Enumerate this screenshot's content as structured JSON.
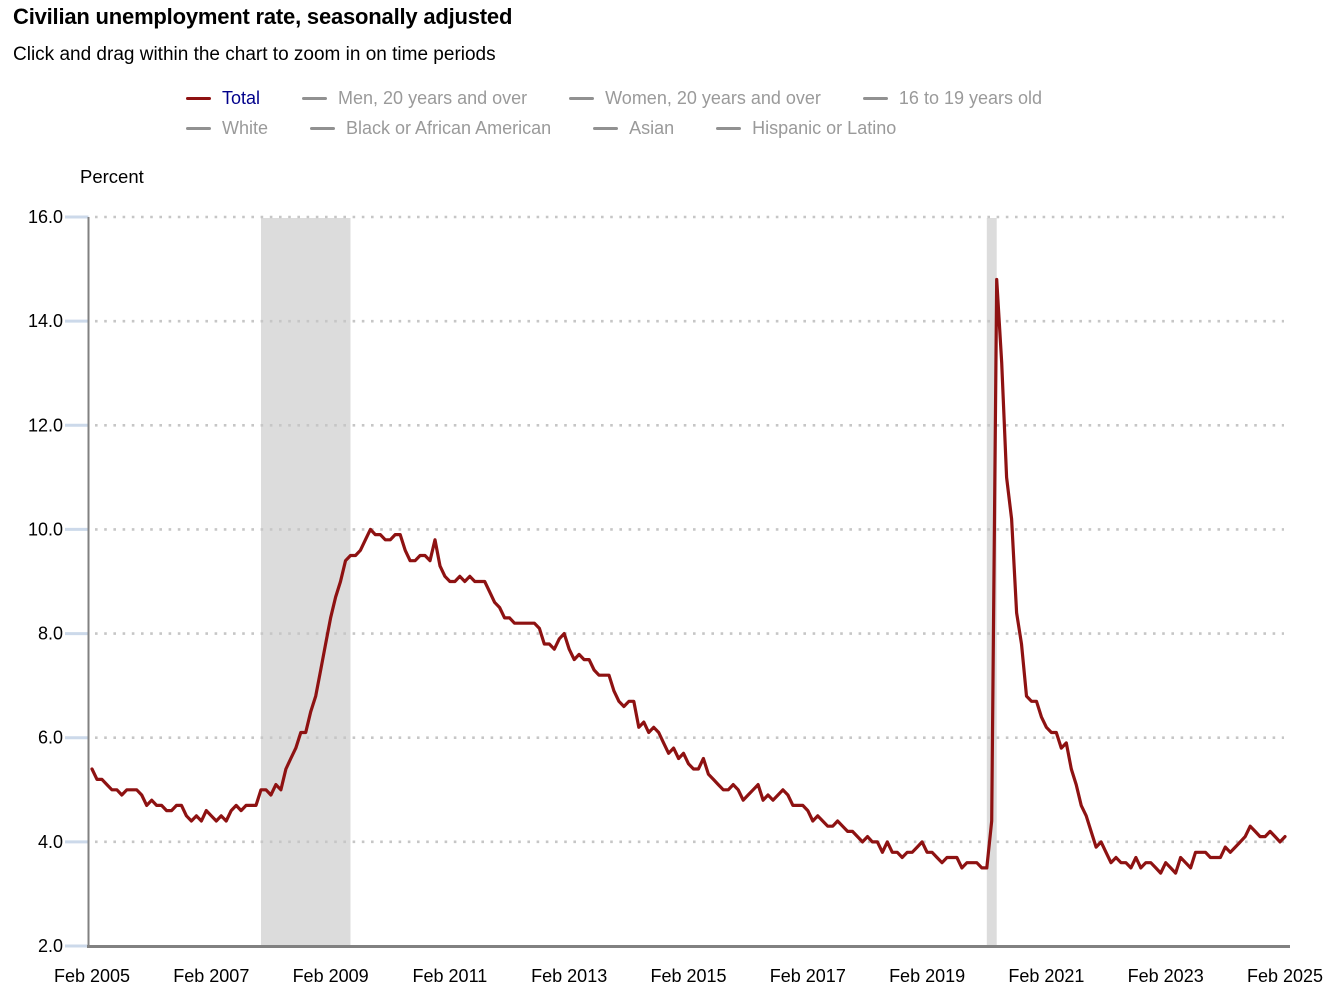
{
  "header": {
    "title": "Civilian unemployment rate, seasonally adjusted",
    "subtitle": "Click and drag within the chart to zoom in on time periods"
  },
  "legend": {
    "rows": [
      [
        {
          "label": "Total",
          "active": true
        },
        {
          "label": "Men, 20 years and over",
          "active": false
        },
        {
          "label": "Women, 20 years and over",
          "active": false
        },
        {
          "label": "16 to 19 years old",
          "active": false
        }
      ],
      [
        {
          "label": "White",
          "active": false
        },
        {
          "label": "Black or African American",
          "active": false
        },
        {
          "label": "Asian",
          "active": false
        },
        {
          "label": "Hispanic or Latino",
          "active": false
        }
      ]
    ]
  },
  "colors": {
    "total_line": "#8e1212",
    "active_label": "#00008b",
    "inactive_label": "#9a9a9a",
    "inactive_swatch": "#919191",
    "axis": "#818181",
    "grid_dots": "#c6c6c6",
    "y_tick": "#ccd9ea",
    "recession_band": "#dcdcdc",
    "text": "#000000"
  },
  "chart_data": {
    "type": "line",
    "title": "Civilian unemployment rate, seasonally adjusted",
    "ylabel": "Percent",
    "xlabel": "",
    "ylim": [
      2,
      16
    ],
    "ytick_step": 2,
    "grid": "dotted horizontal",
    "legend_position": "top",
    "frequency": "monthly",
    "start_month": "Feb 2005",
    "end_month": "Feb 2025",
    "x_tick_interval_months": 24,
    "x_tick_labels": [
      "Feb 2005",
      "Feb 2007",
      "Feb 2009",
      "Feb 2011",
      "Feb 2013",
      "Feb 2015",
      "Feb 2017",
      "Feb 2019",
      "Feb 2021",
      "Feb 2023",
      "Feb 2025"
    ],
    "recession_bands": [
      {
        "start": "Dec 2007",
        "end": "Jun 2009",
        "from_month": 34,
        "to_month": 52
      },
      {
        "start": "Feb 2020",
        "end": "Apr 2020",
        "from_month": 180,
        "to_month": 182
      }
    ],
    "series": [
      {
        "name": "Total",
        "values": [
          5.4,
          5.2,
          5.2,
          5.1,
          5.0,
          5.0,
          4.9,
          5.0,
          5.0,
          5.0,
          4.9,
          4.7,
          4.8,
          4.7,
          4.7,
          4.6,
          4.6,
          4.7,
          4.7,
          4.5,
          4.4,
          4.5,
          4.4,
          4.6,
          4.5,
          4.4,
          4.5,
          4.4,
          4.6,
          4.7,
          4.6,
          4.7,
          4.7,
          4.7,
          5.0,
          5.0,
          4.9,
          5.1,
          5.0,
          5.4,
          5.6,
          5.8,
          6.1,
          6.1,
          6.5,
          6.8,
          7.3,
          7.8,
          8.3,
          8.7,
          9.0,
          9.4,
          9.5,
          9.5,
          9.6,
          9.8,
          10.0,
          9.9,
          9.9,
          9.8,
          9.8,
          9.9,
          9.9,
          9.6,
          9.4,
          9.4,
          9.5,
          9.5,
          9.4,
          9.8,
          9.3,
          9.1,
          9.0,
          9.0,
          9.1,
          9.0,
          9.1,
          9.0,
          9.0,
          9.0,
          8.8,
          8.6,
          8.5,
          8.3,
          8.3,
          8.2,
          8.2,
          8.2,
          8.2,
          8.2,
          8.1,
          7.8,
          7.8,
          7.7,
          7.9,
          8.0,
          7.7,
          7.5,
          7.6,
          7.5,
          7.5,
          7.3,
          7.2,
          7.2,
          7.2,
          6.9,
          6.7,
          6.6,
          6.7,
          6.7,
          6.2,
          6.3,
          6.1,
          6.2,
          6.1,
          5.9,
          5.7,
          5.8,
          5.6,
          5.7,
          5.5,
          5.4,
          5.4,
          5.6,
          5.3,
          5.2,
          5.1,
          5.0,
          5.0,
          5.1,
          5.0,
          4.8,
          4.9,
          5.0,
          5.1,
          4.8,
          4.9,
          4.8,
          4.9,
          5.0,
          4.9,
          4.7,
          4.7,
          4.7,
          4.6,
          4.4,
          4.5,
          4.4,
          4.3,
          4.3,
          4.4,
          4.3,
          4.2,
          4.2,
          4.1,
          4.0,
          4.1,
          4.0,
          4.0,
          3.8,
          4.0,
          3.8,
          3.8,
          3.7,
          3.8,
          3.8,
          3.9,
          4.0,
          3.8,
          3.8,
          3.7,
          3.6,
          3.7,
          3.7,
          3.7,
          3.5,
          3.6,
          3.6,
          3.6,
          3.5,
          3.5,
          4.4,
          14.8,
          13.2,
          11.0,
          10.2,
          8.4,
          7.8,
          6.8,
          6.7,
          6.7,
          6.4,
          6.2,
          6.1,
          6.1,
          5.8,
          5.9,
          5.4,
          5.1,
          4.7,
          4.5,
          4.2,
          3.9,
          4.0,
          3.8,
          3.6,
          3.7,
          3.6,
          3.6,
          3.5,
          3.7,
          3.5,
          3.6,
          3.6,
          3.5,
          3.4,
          3.6,
          3.5,
          3.4,
          3.7,
          3.6,
          3.5,
          3.8,
          3.8,
          3.8,
          3.7,
          3.7,
          3.7,
          3.9,
          3.8,
          3.9,
          4.0,
          4.1,
          4.3,
          4.2,
          4.1,
          4.1,
          4.2,
          4.1,
          4.0,
          4.1
        ]
      }
    ]
  }
}
